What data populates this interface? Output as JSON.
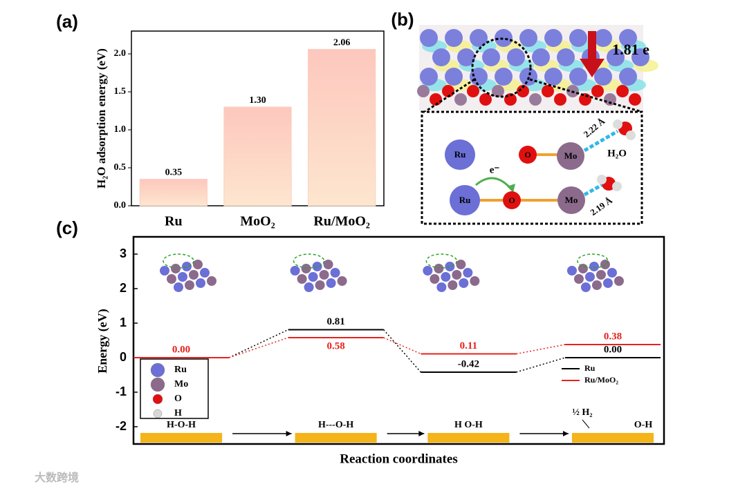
{
  "panel_labels": [
    "(a)",
    "(b)",
    "(c)"
  ],
  "chart_data": [
    {
      "type": "bar",
      "y_label": "H₂O adsorption energy (eV)",
      "categories": [
        "Ru",
        "MoO₂",
        "Ru/MoO₂"
      ],
      "values": [
        0.35,
        1.3,
        2.06
      ],
      "value_labels": [
        "0.35",
        "1.30",
        "2.06"
      ],
      "color": "#fdd0c2",
      "ylim": [
        0,
        2.3
      ],
      "yticks": [
        {
          "value": 0,
          "label": "0.0"
        },
        {
          "value": 0.5,
          "label": "0.5"
        },
        {
          "value": 1,
          "label": "1.0"
        },
        {
          "value": 1.5,
          "label": "1.5"
        },
        {
          "value": 2,
          "label": "2.0"
        }
      ]
    },
    {
      "type": "energy-level",
      "y_label": "Energy (eV)",
      "x_label": "Reaction coordinates",
      "categories": [
        "H-O-H",
        "H---O-H",
        "H    O-H",
        "O-H"
      ],
      "annotation": "½ H₂",
      "series": [
        {
          "name": "Ru",
          "color": "#000000",
          "values": [
            0.0,
            0.81,
            -0.42,
            0.0
          ],
          "value_labels": [
            null,
            "0.81",
            "-0.42",
            "0.00"
          ]
        },
        {
          "name": "Ru/MoO₂",
          "color": "#e8201c",
          "values": [
            0.0,
            0.58,
            0.11,
            0.38
          ],
          "value_labels": [
            "0.00",
            "0.58",
            "0.11",
            "0.38"
          ]
        }
      ],
      "ylim": [
        -2.5,
        3.5
      ],
      "yticks": [
        -2,
        -1,
        0,
        1,
        2,
        3
      ],
      "legend": "lower right",
      "atom_legend": [
        {
          "name": "Ru",
          "color": "#6b6fd6"
        },
        {
          "name": "Mo",
          "color": "#8c6a8c"
        },
        {
          "name": "O",
          "color": "#e01010"
        },
        {
          "name": "H",
          "color": "#d8d8d8"
        }
      ]
    }
  ],
  "panel_b": {
    "charge": "1.81 e",
    "atoms": [
      "Ru",
      "O",
      "Mo",
      "Ru",
      "O",
      "Mo"
    ],
    "molecule": "H₂O",
    "bond_1": "2.22 Å",
    "bond_2": "2.19 Å",
    "electron": "e⁻"
  },
  "watermark": "大数跨境"
}
